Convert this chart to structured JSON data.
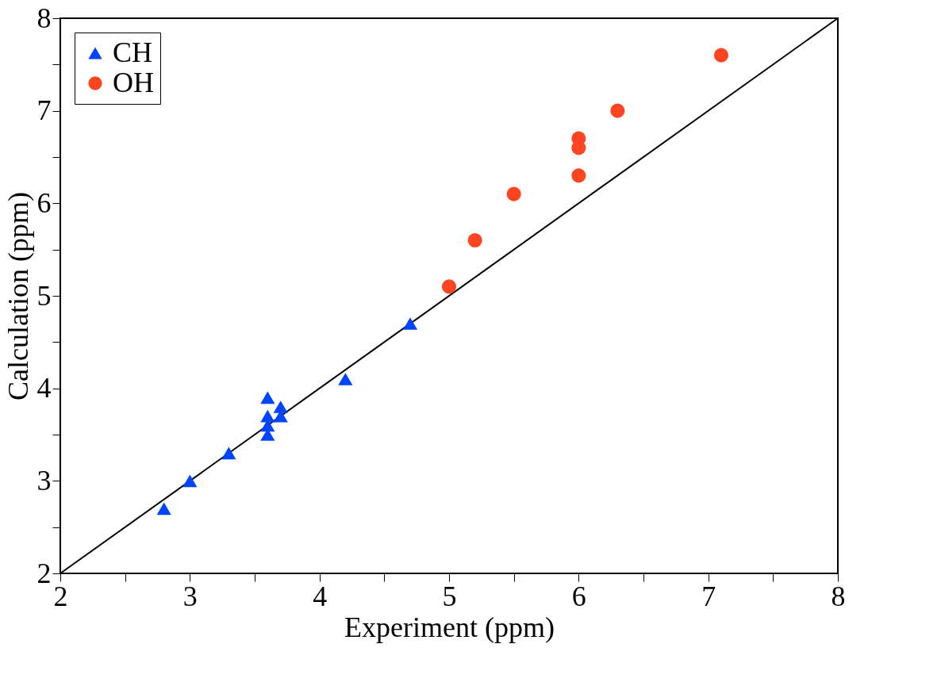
{
  "chart_data": {
    "type": "scatter",
    "xlabel": "Experiment (ppm)",
    "ylabel": "Calculation (ppm)",
    "xlim": [
      2,
      8
    ],
    "ylim": [
      2,
      8
    ],
    "xticks": [
      2,
      {
        "value": 2.5,
        "label": null
      },
      3,
      {
        "value": 3.5,
        "label": null
      },
      4,
      {
        "value": 4.5,
        "label": null
      },
      5,
      {
        "value": 5.5,
        "label": null
      },
      6,
      {
        "value": 6.5,
        "label": null
      },
      7,
      {
        "value": 7.5,
        "label": null
      },
      8
    ],
    "yticks": [
      2,
      {
        "value": 2.5,
        "label": null
      },
      3,
      {
        "value": 3.5,
        "label": null
      },
      4,
      {
        "value": 4.5,
        "label": null
      },
      5,
      {
        "value": 5.5,
        "label": null
      },
      6,
      {
        "value": 6.5,
        "label": null
      },
      7,
      {
        "value": 7.5,
        "label": null
      },
      8
    ],
    "grid": false,
    "legend": "top left",
    "series": [
      {
        "type": "line",
        "color": "#000000",
        "x": [
          2,
          8
        ],
        "values": [
          2,
          8
        ]
      },
      {
        "name": "CH",
        "color": "#0044ff",
        "marker": "triangle",
        "x": [
          2.8,
          3.0,
          3.3,
          3.6,
          3.6,
          3.6,
          3.6,
          3.7,
          3.7,
          4.2,
          4.7
        ],
        "values": [
          2.7,
          3.0,
          3.3,
          3.9,
          3.7,
          3.6,
          3.5,
          3.8,
          3.7,
          4.1,
          4.7
        ]
      },
      {
        "name": "OH",
        "color": "#ff4422",
        "marker": "circle",
        "x": [
          5.0,
          5.2,
          5.5,
          6.0,
          6.0,
          6.0,
          6.3,
          7.1
        ],
        "values": [
          5.1,
          5.6,
          6.1,
          6.3,
          6.6,
          6.7,
          7.0,
          7.6
        ]
      }
    ]
  }
}
